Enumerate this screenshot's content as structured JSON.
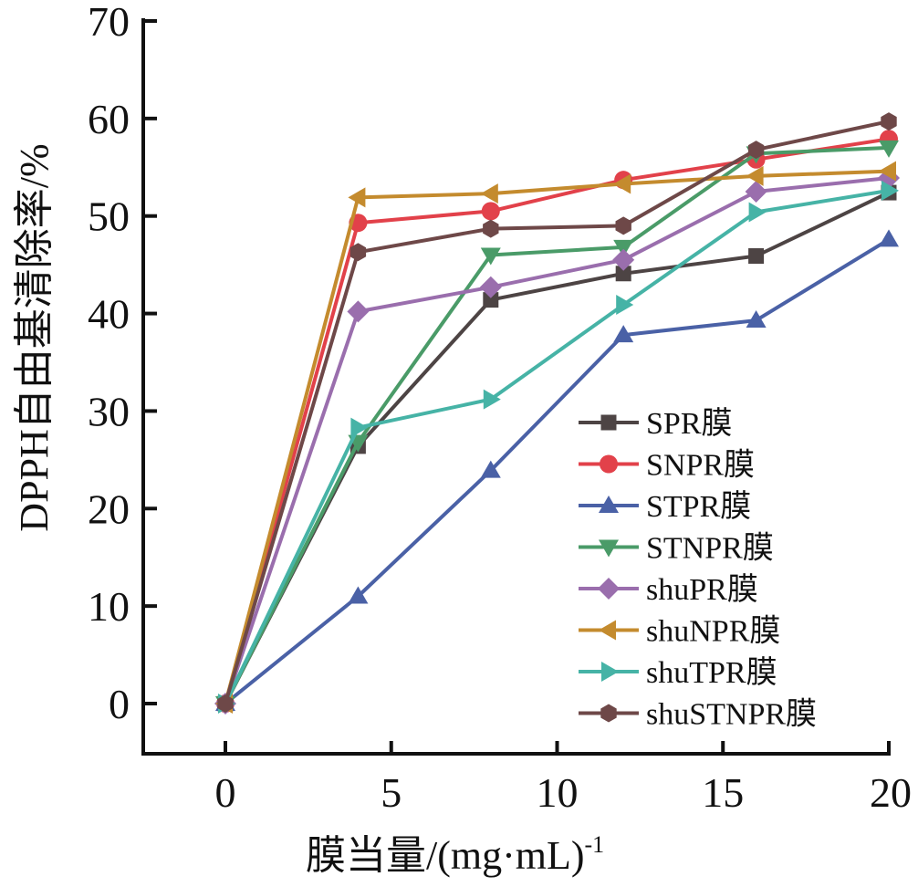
{
  "chart_data": {
    "type": "line",
    "title": "",
    "xlabel": "膜当量/(mg·mL)",
    "xlabel_superscript": "-1",
    "ylabel": "DPPH自由基清除率/%",
    "xlim": [
      -2.5,
      20
    ],
    "ylim": [
      -5,
      70
    ],
    "xticks": [
      0,
      5,
      10,
      15,
      20
    ],
    "yticks": [
      0,
      10,
      20,
      30,
      40,
      50,
      60,
      70
    ],
    "grid": false,
    "legend_position": "bottom-right",
    "x": [
      0,
      4,
      8,
      12,
      16,
      20
    ],
    "series": [
      {
        "name": "SPR膜",
        "marker": "square",
        "color": "#4d4444",
        "values": [
          0,
          26.4,
          41.4,
          44.1,
          45.9,
          52.4
        ]
      },
      {
        "name": "SNPR膜",
        "marker": "circle",
        "color": "#e2414a",
        "values": [
          0,
          49.3,
          50.5,
          53.7,
          55.8,
          57.9
        ]
      },
      {
        "name": "STPR膜",
        "marker": "triangle-up",
        "color": "#4a61a6",
        "values": [
          0,
          11.0,
          23.9,
          37.8,
          39.3,
          47.6
        ]
      },
      {
        "name": "STNPR膜",
        "marker": "triangle-down",
        "color": "#4a9b68",
        "values": [
          0,
          26.8,
          46.0,
          46.8,
          56.4,
          57.0
        ]
      },
      {
        "name": "shuPR膜",
        "marker": "diamond",
        "color": "#9a6ead",
        "values": [
          0,
          40.2,
          42.7,
          45.5,
          52.5,
          53.9
        ]
      },
      {
        "name": "shuNPR膜",
        "marker": "triangle-left",
        "color": "#c48b2e",
        "values": [
          0,
          51.9,
          52.3,
          53.3,
          54.1,
          54.6
        ]
      },
      {
        "name": "shuTPR膜",
        "marker": "triangle-right",
        "color": "#46b3a6",
        "values": [
          0,
          28.3,
          31.2,
          40.9,
          50.4,
          52.6
        ]
      },
      {
        "name": "shuSTNPR膜",
        "marker": "hexagon",
        "color": "#6e4848",
        "values": [
          0,
          46.3,
          48.7,
          49.0,
          56.8,
          59.7
        ]
      }
    ]
  }
}
